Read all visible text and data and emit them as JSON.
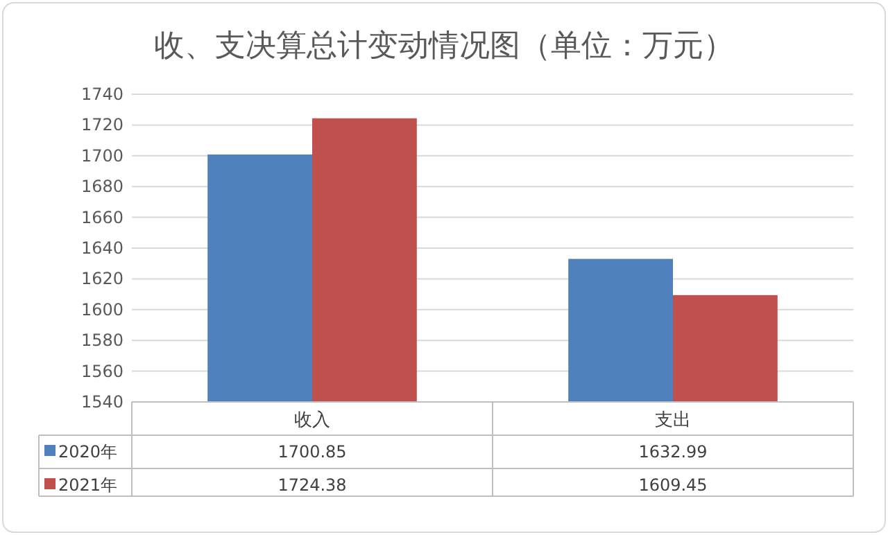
{
  "chart_data": {
    "type": "bar",
    "title": "收、支决算总计变动情况图（单位：万元）",
    "categories": [
      "收入",
      "支出"
    ],
    "series": [
      {
        "name": "2020年",
        "color": "#4f81bd",
        "values": [
          1700.85,
          1632.99
        ]
      },
      {
        "name": "2021年",
        "color": "#c0504d",
        "values": [
          1724.38,
          1609.45
        ]
      }
    ],
    "ylim": [
      1540,
      1740
    ],
    "yticks": [
      1540,
      1560,
      1580,
      1600,
      1620,
      1640,
      1660,
      1680,
      1700,
      1720,
      1740
    ],
    "grid": "y",
    "legend": "bottom left",
    "data_labels": true
  }
}
